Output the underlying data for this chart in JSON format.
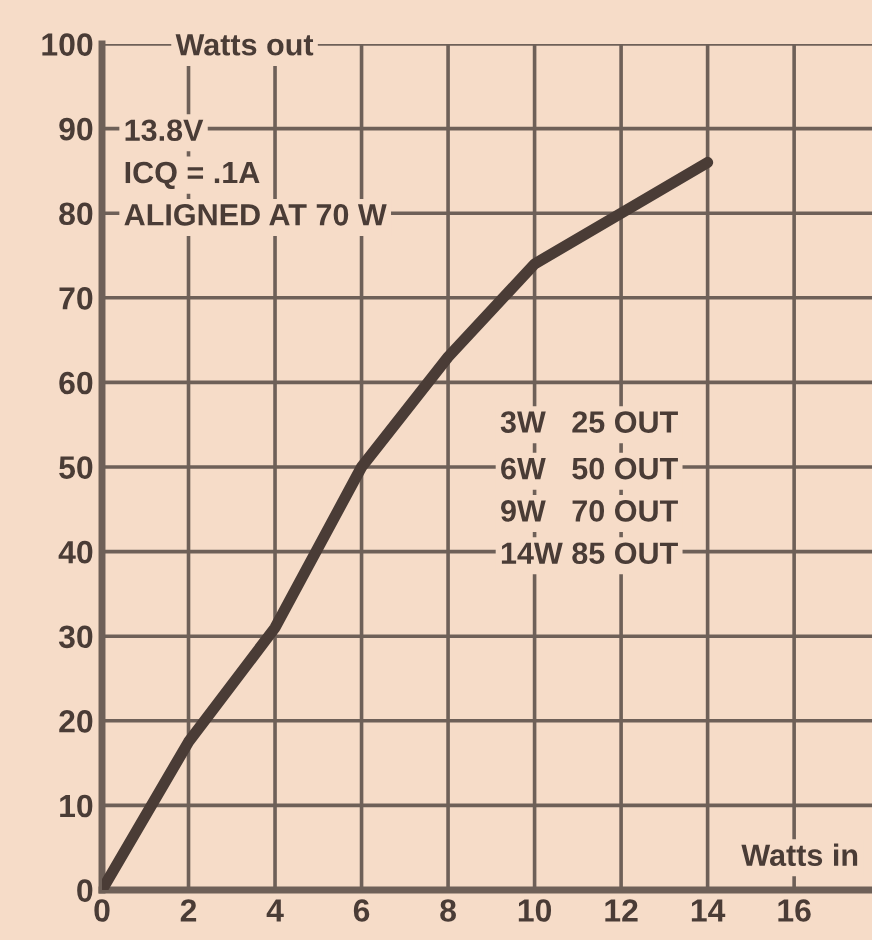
{
  "chart_data": {
    "type": "line",
    "xlabel": "Watts in",
    "ylabel": "Watts out",
    "x": [
      0,
      2,
      4,
      6,
      8,
      10,
      12,
      14
    ],
    "series": [
      {
        "color": "#4a3c36",
        "values": [
          0,
          17.5,
          31,
          50,
          63,
          74,
          80,
          86
        ]
      }
    ],
    "xlim": [
      0,
      17.8
    ],
    "xticks": [
      0,
      2,
      4,
      6,
      8,
      10,
      12,
      14,
      16
    ],
    "ylim": [
      0,
      100
    ],
    "yticks": [
      0,
      10,
      20,
      30,
      40,
      50,
      60,
      70,
      80,
      90,
      100
    ],
    "grid": true,
    "marker": "none",
    "line_style": "solid",
    "annotations": [
      "13.8V",
      "ICQ = .1A",
      "ALIGNED AT 70 W",
      "3W   25 OUT",
      "6W   50 OUT",
      "9W   70 OUT",
      "14W 85 OUT"
    ]
  }
}
